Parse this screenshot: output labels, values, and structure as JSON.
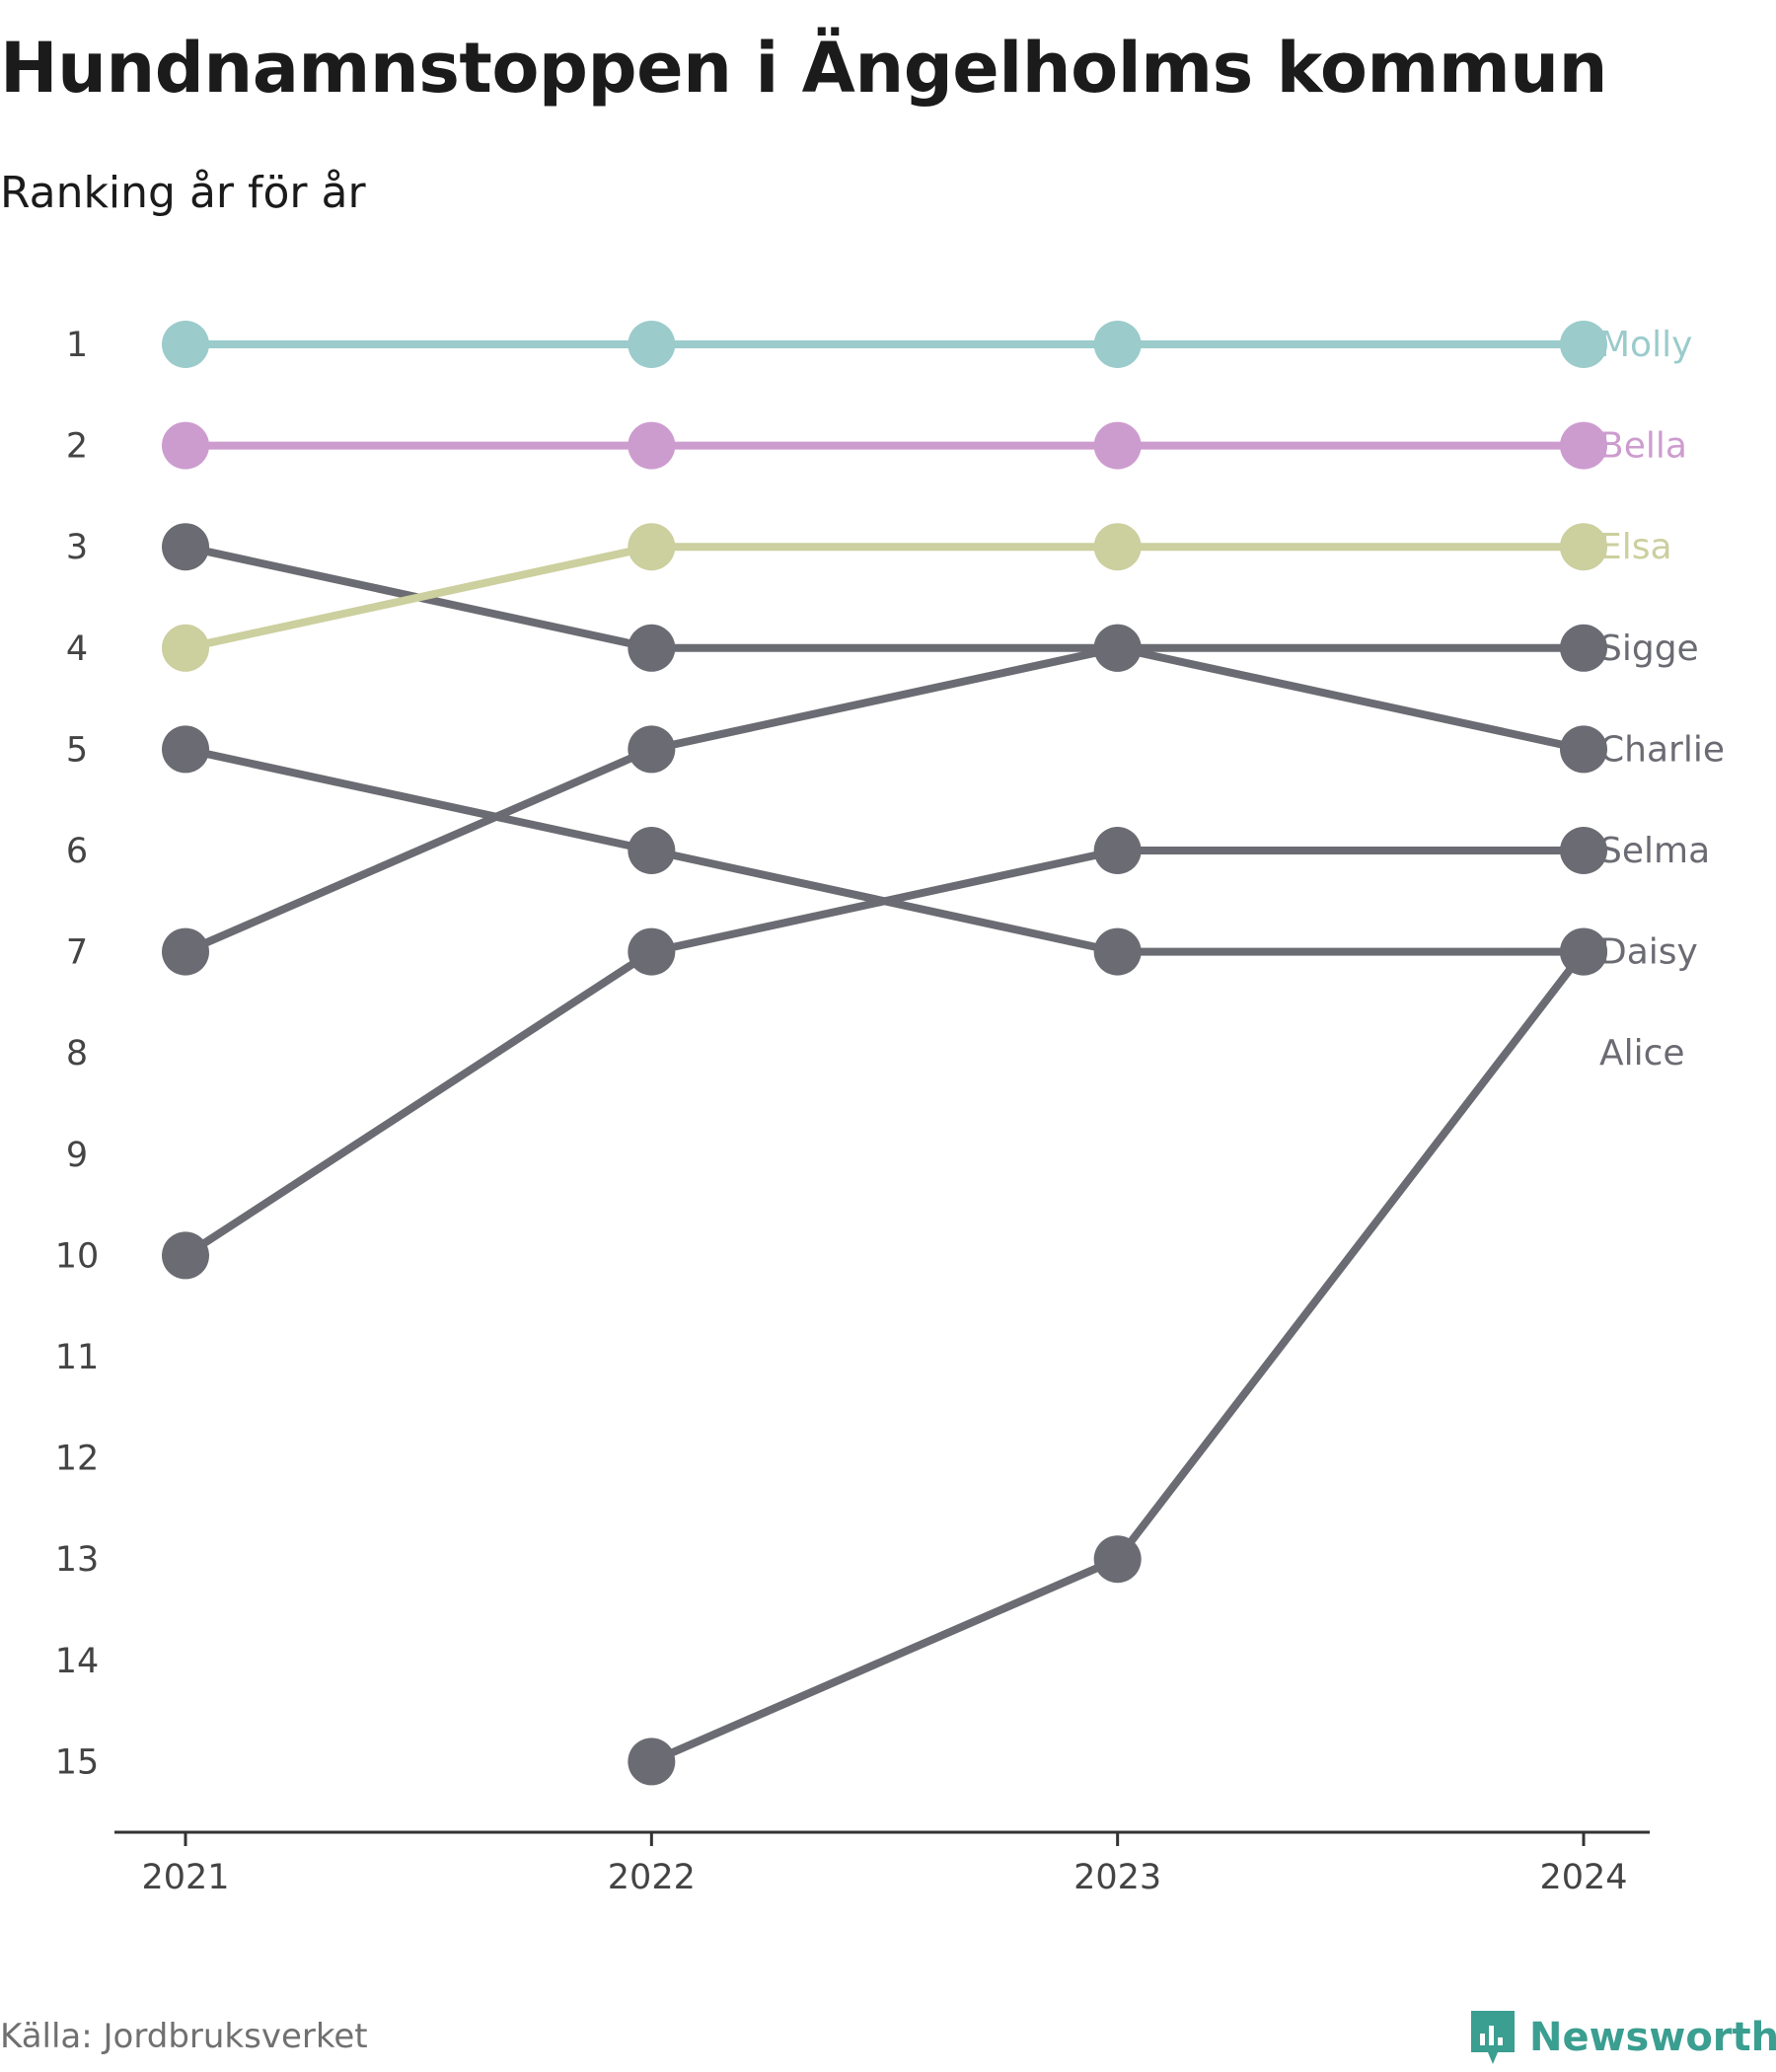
{
  "title": "Hundnamnstoppen i Ängelholms kommun",
  "subtitle": "Ranking år för år",
  "source": "Källa: Jordbruksverket",
  "brand": "Newsworthy",
  "colors": {
    "Molly": "#9bcbcb",
    "Bella": "#cd9ccf",
    "Elsa": "#cccf9e",
    "other": "#6b6b73",
    "axis": "#333333",
    "brand": "#3a9e90"
  },
  "chart_data": {
    "type": "line",
    "x": [
      "2021",
      "2022",
      "2023",
      "2024"
    ],
    "y_ticks": [
      1,
      2,
      3,
      4,
      5,
      6,
      7,
      8,
      9,
      10,
      11,
      12,
      13,
      14,
      15
    ],
    "ylim": [
      1,
      15
    ],
    "y_reversed": true,
    "series": [
      {
        "name": "Molly",
        "color_key": "Molly",
        "values": [
          1,
          1,
          1,
          1
        ]
      },
      {
        "name": "Bella",
        "color_key": "Bella",
        "values": [
          2,
          2,
          2,
          2
        ]
      },
      {
        "name": "Elsa",
        "color_key": "Elsa",
        "values": [
          4,
          3,
          3,
          3
        ]
      },
      {
        "name": "Sigge",
        "color_key": "other",
        "values": [
          7,
          5,
          4,
          4
        ]
      },
      {
        "name": "Charlie",
        "color_key": "other",
        "values": [
          3,
          4,
          4,
          5
        ]
      },
      {
        "name": "Selma",
        "color_key": "other",
        "values": [
          10,
          7,
          6,
          6
        ]
      },
      {
        "name": "Daisy",
        "color_key": "other",
        "values": [
          5,
          6,
          7,
          7
        ]
      },
      {
        "name": "Alice",
        "color_key": "other",
        "values": [
          null,
          15,
          13,
          7
        ]
      }
    ],
    "label_ranks": {
      "Molly": 1,
      "Bella": 2,
      "Elsa": 3,
      "Sigge": 4,
      "Charlie": 5,
      "Selma": 6,
      "Daisy": 7,
      "Alice": 8
    }
  }
}
